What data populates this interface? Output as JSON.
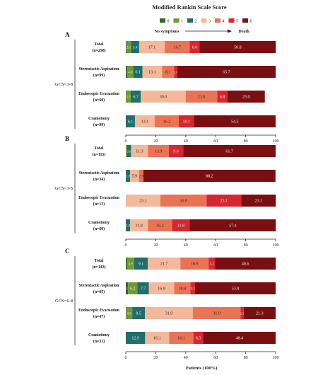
{
  "chart_data": {
    "type": "bar",
    "stacked": "horizontal-percent",
    "legend": {
      "title": "Modified Rankin Scale Score",
      "placement": "top",
      "entries": [
        {
          "label": "0",
          "color": "#2e6b1e"
        },
        {
          "label": "1",
          "color": "#6e9a36"
        },
        {
          "label": "2",
          "color": "#1f6e6b"
        },
        {
          "label": "3",
          "color": "#f4b89a"
        },
        {
          "label": "4",
          "color": "#ea7356"
        },
        {
          "label": "5",
          "color": "#d7262f"
        },
        {
          "label": "6",
          "color": "#7a0f12"
        }
      ]
    },
    "arrow_left_label": "No symptoms",
    "arrow_right_label": "Death",
    "xlabel": "Patients (100%)",
    "xlim": [
      0,
      100
    ],
    "xticks": [
      "0",
      "20",
      "40",
      "60",
      "80",
      "100"
    ],
    "panels": [
      {
        "letter": "A",
        "group": "GCS=3-8",
        "rows": [
          {
            "name": "Total",
            "n": "(n=258)",
            "values": [
              0.4,
              3.1,
              5.4,
              17.1,
              16.7,
              6.6,
              50.8
            ],
            "labels": [
              "0.4",
              "3.1",
              "5.4",
              "17.1",
              "16.7",
              "6.6",
              "50.8"
            ]
          },
          {
            "name": "Stereotactic Aspiration",
            "n": "(n=99)",
            "values": [
              1.0,
              4.0,
              6.1,
              13.1,
              8.1,
              2.0,
              65.7
            ],
            "labels": [
              "1.0",
              "4.0",
              "6.1",
              "13.1",
              "8.1",
              "2.0",
              "65.7"
            ]
          },
          {
            "name": "Endoscopic Evacuation",
            "n": "(n=60)",
            "values": [
              0,
              3.3,
              6.7,
              30.0,
              21.0,
              6.8,
              25.0
            ],
            "labels": [
              "",
              "3.3",
              "6.7",
              "30.0",
              "21.0",
              "6.8",
              "25.0"
            ]
          },
          {
            "name": "Craniotomy",
            "n": "(n=99)",
            "values": [
              0,
              0,
              6.1,
              13.1,
              16.2,
              10.1,
              54.5
            ],
            "labels": [
              "",
              "",
              "6.1",
              "13.1",
              "16.2",
              "10.1",
              "54.5"
            ]
          }
        ]
      },
      {
        "letter": "B",
        "group": "GCS=3-5",
        "rows": [
          {
            "name": "Total",
            "n": "(n=115)",
            "values": [
              0,
              0.9,
              2.6,
              11.3,
              13.9,
              9.6,
              61.7
            ],
            "labels": [
              "",
              "0.9",
              "2.6",
              "11.3",
              "13.9",
              "9.6",
              "61.7"
            ]
          },
          {
            "name": "Stereotactic Aspiration",
            "n": "(n=34)",
            "values": [
              0,
              0,
              2.9,
              5.9,
              2.9,
              0,
              88.2
            ],
            "labels": [
              "",
              "",
              "2.9",
              "5.9",
              "2.9",
              "",
              "88.2"
            ]
          },
          {
            "name": "Endoscopic Evacuation",
            "n": "(n=13)",
            "values": [
              0,
              0,
              0,
              23.1,
              30.8,
              23.1,
              23.1
            ],
            "labels": [
              "",
              "",
              "",
              "23.1",
              "30.8",
              "23.1",
              "23.1"
            ]
          },
          {
            "name": "Craniotomy",
            "n": "(n=68)",
            "values": [
              0,
              0,
              2.9,
              11.8,
              16.2,
              11.8,
              57.4
            ],
            "labels": [
              "",
              "",
              "2.9",
              "11.8",
              "16.2",
              "11.8",
              "57.4"
            ]
          }
        ]
      },
      {
        "letter": "C",
        "group": "GCS=6-8",
        "rows": [
          {
            "name": "Total",
            "n": "(n=143)",
            "values": [
              0.7,
              4.9,
              9.1,
              21.7,
              18.9,
              4.2,
              40.6
            ],
            "labels": [
              "0.7",
              "4.9",
              "9.1",
              "21.7",
              "18.9",
              "4.2",
              "40.6"
            ]
          },
          {
            "name": "Stereotactic Aspiration",
            "n": "(n=65)",
            "values": [
              1.5,
              6.2,
              7.7,
              16.9,
              10.8,
              3.1,
              53.8
            ],
            "labels": [
              "1.5",
              "6.2",
              "7.7",
              "16.9",
              "10.8",
              "3.1",
              "53.8"
            ]
          },
          {
            "name": "Endoscopic Evacuation",
            "n": "(n=47)",
            "values": [
              0,
              4.3,
              8.5,
              31.9,
              31.9,
              2.1,
              21.3
            ],
            "labels": [
              "",
              "4.3",
              "8.5",
              "31.9",
              "31.9",
              "2.1",
              "21.3"
            ]
          },
          {
            "name": "Craniotomy",
            "n": "(n=31)",
            "values": [
              0,
              0,
              12.9,
              16.1,
              16.1,
              6.5,
              48.4
            ],
            "labels": [
              "",
              "",
              "12.9",
              "16.1",
              "16.1",
              "6.5",
              "48.4"
            ]
          }
        ]
      }
    ]
  }
}
